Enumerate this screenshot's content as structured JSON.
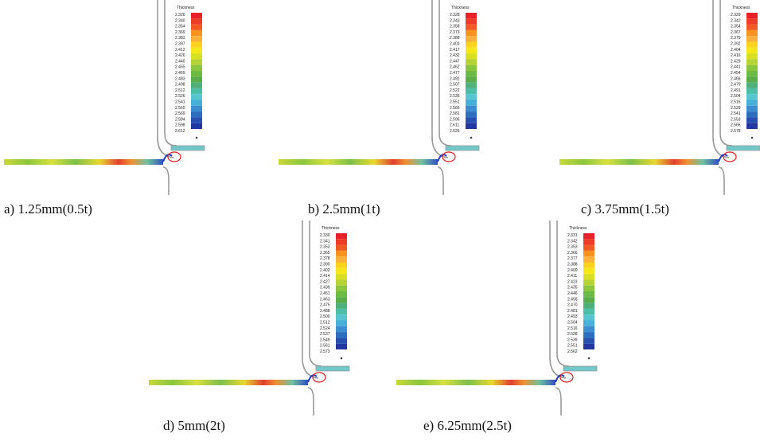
{
  "panels": [
    {
      "legend_title": "Thickness",
      "legend_values": [
        "2.326",
        "2.340",
        "2.354",
        "2.369",
        "2.383",
        "2.397",
        "2.412",
        "2.426",
        "2.440",
        "2.455",
        "2.469",
        "2.483",
        "2.498",
        "2.512",
        "2.526",
        "2.541",
        "2.555",
        "2.569",
        "2.584",
        "2.598",
        "2.612"
      ],
      "caption": "a) 1.25mm(0.5t)"
    },
    {
      "legend_title": "Thickness",
      "legend_values": [
        "2.328",
        "2.343",
        "2.358",
        "2.373",
        "2.388",
        "2.403",
        "2.417",
        "2.432",
        "2.447",
        "2.462",
        "2.477",
        "2.492",
        "2.507",
        "2.522",
        "2.536",
        "2.551",
        "2.566",
        "2.581",
        "2.596",
        "2.611",
        "2.626"
      ],
      "caption": "b) 2.5mm(1t)"
    },
    {
      "legend_title": "Thickness",
      "legend_values": [
        "2.329",
        "2.342",
        "2.354",
        "2.367",
        "2.379",
        "2.392",
        "2.404",
        "2.416",
        "2.429",
        "2.441",
        "2.454",
        "2.466",
        "2.479",
        "2.491",
        "2.504",
        "2.516",
        "2.529",
        "2.541",
        "2.553",
        "2.566",
        "2.578"
      ],
      "caption": "c) 3.75mm(1.5t)"
    },
    {
      "legend_title": "Thickness",
      "legend_values": [
        "2.330",
        "2.341",
        "2.353",
        "2.365",
        "2.378",
        "2.390",
        "2.402",
        "2.414",
        "2.427",
        "2.439",
        "2.451",
        "2.463",
        "2.475",
        "2.488",
        "2.500",
        "2.512",
        "2.524",
        "2.537",
        "2.549",
        "2.561",
        "2.573"
      ],
      "caption": "d) 5mm(2t)"
    },
    {
      "legend_title": "Thickness",
      "legend_values": [
        "2.331",
        "2.342",
        "2.353",
        "2.366",
        "2.377",
        "2.388",
        "2.400",
        "2.411",
        "2.423",
        "2.435",
        "2.446",
        "2.458",
        "2.470",
        "2.481",
        "2.493",
        "2.504",
        "2.516",
        "2.528",
        "2.539",
        "2.551",
        "2.562"
      ],
      "caption": "e) 6.25mm(2.5t)"
    }
  ]
}
